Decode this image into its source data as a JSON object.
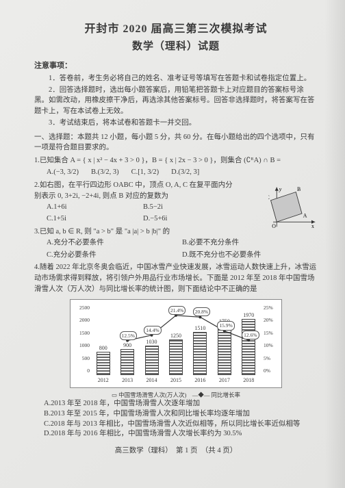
{
  "header": {
    "title_line1": "开封市 2020 届高三第三次模拟考试",
    "title_line2": "数学（理科）试题"
  },
  "notice_head": "注意事项：",
  "notices": [
    "1．答卷前，考生务必将自己的姓名、准考证号等填写在答题卡和试卷指定位置上。",
    "2．回答选择题时，选出每小题答案后，用铅笔把答题卡上对应题目的答案标号涂黑。如需改动，用橡皮擦干净后，再选涂其他答案标号。回答非选择题时，将答案写在答题卡上，写在本试卷上无效。",
    "3．考试结束后，将本试卷和答题卡一并交回。"
  ],
  "part1_head": "一、选择题：本题共 12 小题，每小题 5 分，共 60 分。在每小题给出的四个选项中，只有一项是符合题目要求的。",
  "q1": {
    "stem": "1.已知集合 A = { x | x² − 4x + 3 > 0 }，B = { x | 2x − 3 > 0 }，则集合 (∁ᴿA) ∩ B =",
    "opts": [
      "A.(−3, 3/2)",
      "B.(3/2, 3)",
      "C.[1, 3/2)",
      "D.(3/2, 3]"
    ]
  },
  "q2": {
    "stem": "2.如右图，在平行四边形 OABC 中，顶点 O, A, C 在复平面内分别表示 0, 3+2i, −2+4i, 则点 B 对应的复数为",
    "opts": [
      "A.1+6i",
      "B.5−2i",
      "C.1+5i",
      "D.−5+6i"
    ]
  },
  "q3": {
    "stem": "3.已知 a, b ∈ R, 则 \"a > b\" 是 \"a |a| > b |b|\" 的",
    "opts": [
      "A.充分不必要条件",
      "B.必要不充分条件",
      "C.充分必要条件",
      "D.既不充分也不必要条件"
    ]
  },
  "q4": {
    "intro1": "4.随着 2022 年北京冬奥会临近，中国冰雪产业快速发展，冰雪运动人数快速上升，冰雪运动市场需求得到释放，将引领户外用品行业市场增长。下面是 2012 年至 2018 年中国雪场滑雪人次（万人次）与同比增长率的统计图，则下面结论中不正确的是",
    "legend": "▭ 中国雪场滑雪人次(万人次)　—◆— 同比增长率",
    "opts": [
      "A.2013 年至 2018 年，中国雪场滑雪人次逐年增加",
      "B.2013 年至 2015 年，中国雪场滑雪人次和同比增长率均逐年增加",
      "C.2018 年与 2013 年相比，中国雪场滑雪人次近似相等，所以同比增长率近似相等",
      "D.2018 年与 2016 年相比，中国雪场滑雪人次增长率约为 30.5%"
    ]
  },
  "chart": {
    "type": "bar+line",
    "years": [
      "2012",
      "2013",
      "2014",
      "2015",
      "2016",
      "2017",
      "2018"
    ],
    "bars": [
      800,
      900,
      1030,
      1250,
      1510,
      1750,
      1970
    ],
    "growth_labels": [
      "",
      "12.5%",
      "14.4%",
      "21.4%",
      "20.8%",
      "15.9%",
      "12.6%"
    ],
    "ylim_left": [
      0,
      2500
    ],
    "ytick_left": [
      0,
      500,
      1000,
      1500,
      2000,
      2500
    ],
    "ylim_right": [
      0,
      25
    ],
    "ytick_right": [
      "0%",
      "5%",
      "10%",
      "15%",
      "20%",
      "25%"
    ],
    "bar_color": "#777777",
    "line_color": "#333333",
    "background": "#ffffff",
    "grid_color": "#cccccc",
    "bar_label_fontsize": 8,
    "axis_fontsize": 7.5
  },
  "geo": {
    "labels": {
      "O": "O",
      "A": "A",
      "B": "B",
      "C": "C",
      "x": "x",
      "y": "y"
    },
    "stroke": "#333333"
  },
  "footer": "高三数学（理科）　第 1 页　（共 4 页）"
}
